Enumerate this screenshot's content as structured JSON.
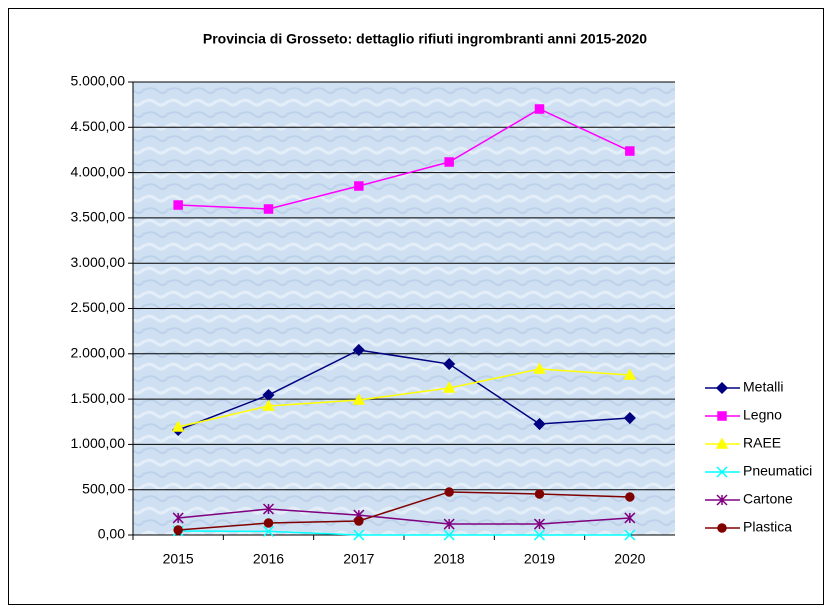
{
  "chart_data": {
    "type": "line",
    "title": "Provincia di Grosseto: dettaglio rifiuti ingrombranti anni 2015-2020",
    "categories": [
      "2015",
      "2016",
      "2017",
      "2018",
      "2019",
      "2020"
    ],
    "series": [
      {
        "name": "Metalli",
        "color": "#000080",
        "marker": "diamond",
        "values": [
          1159,
          1545,
          2042,
          1887,
          1225,
          1291
        ]
      },
      {
        "name": "Legno",
        "color": "#ff00ff",
        "marker": "square",
        "values": [
          3642,
          3598,
          3852,
          4117,
          4702,
          4238
        ]
      },
      {
        "name": "RAEE",
        "color": "#ffff00",
        "marker": "triangle",
        "values": [
          1192,
          1424,
          1490,
          1622,
          1832,
          1766
        ]
      },
      {
        "name": "Pneumatici",
        "color": "#00ffff",
        "marker": "x",
        "values": [
          44,
          40,
          0,
          0,
          0,
          0
        ]
      },
      {
        "name": "Cartone",
        "color": "#800080",
        "marker": "star",
        "values": [
          188,
          287,
          220,
          121,
          121,
          188
        ]
      },
      {
        "name": "Plastica",
        "color": "#800000",
        "marker": "circle",
        "values": [
          55,
          132,
          155,
          475,
          453,
          420
        ]
      }
    ],
    "ylim": [
      0,
      5000
    ],
    "yticks": [
      {
        "value": 0,
        "label": "0,00"
      },
      {
        "value": 500,
        "label": "500,00"
      },
      {
        "value": 1000,
        "label": "1.000,00"
      },
      {
        "value": 1500,
        "label": "1.500,00"
      },
      {
        "value": 2000,
        "label": "2.000,00"
      },
      {
        "value": 2500,
        "label": "2.500,00"
      },
      {
        "value": 3000,
        "label": "3.000,00"
      },
      {
        "value": 3500,
        "label": "3.500,00"
      },
      {
        "value": 4000,
        "label": "4.000,00"
      },
      {
        "value": 4500,
        "label": "4.500,00"
      },
      {
        "value": 5000,
        "label": "5.000,00"
      }
    ],
    "grid": true,
    "legend": "right"
  }
}
